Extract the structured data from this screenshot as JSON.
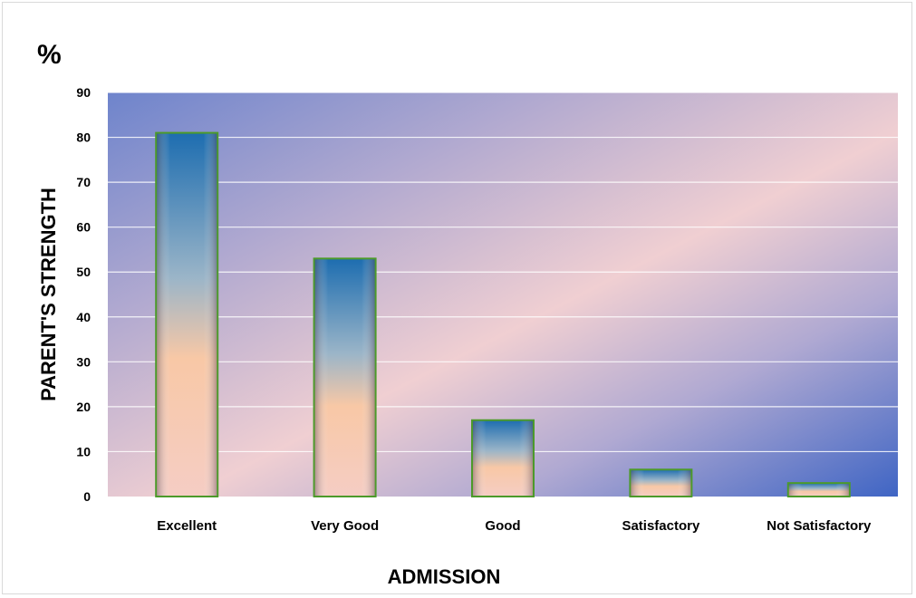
{
  "chart_data": {
    "type": "bar",
    "unit_label": "%",
    "ylabel": "PARENT'S STRENGTH",
    "xlabel": "ADMISSION",
    "categories": [
      "Excellent",
      "Very Good",
      "Good",
      "Satisfactory",
      "Not Satisfactory"
    ],
    "values": [
      81,
      53,
      17,
      6,
      3
    ],
    "ylim": [
      0,
      90
    ],
    "yticks": [
      0,
      10,
      20,
      30,
      40,
      50,
      60,
      70,
      80,
      90
    ],
    "grid": true,
    "legend": "none",
    "colors": {
      "bar_top": "#1f6fb2",
      "bar_bottom": "#f6cbbd",
      "bar_border": "#4c9a2a",
      "plot_bg_blue": "#4f73c9",
      "plot_bg_pink": "#f2cfd0",
      "gridline": "#ffffff"
    }
  }
}
